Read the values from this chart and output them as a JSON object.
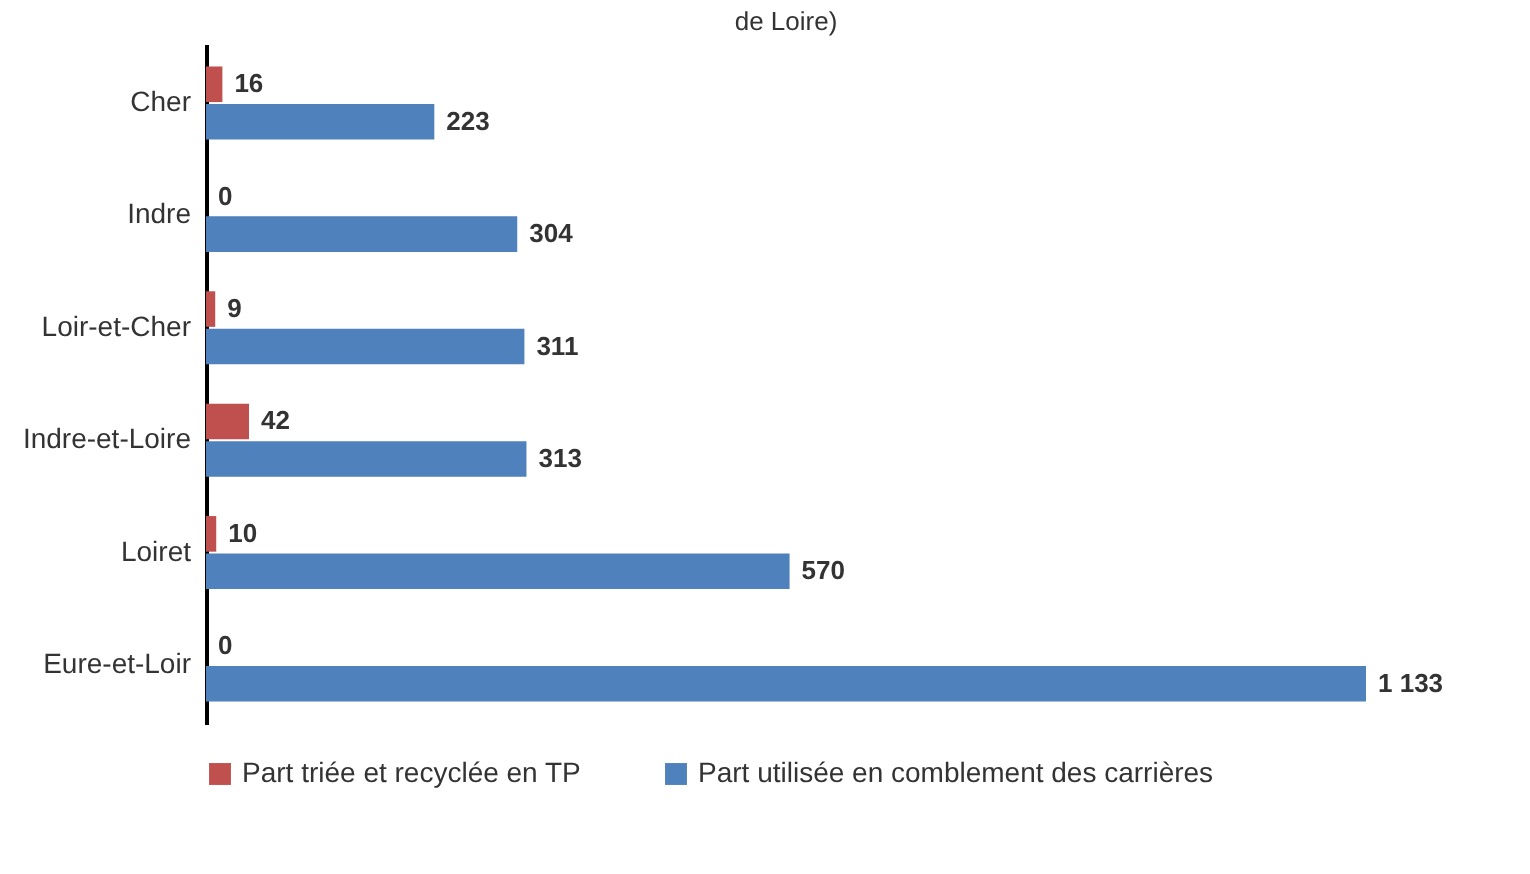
{
  "chart_data": {
    "type": "bar",
    "orientation": "horizontal",
    "title": "de Loire)",
    "categories": [
      "Cher",
      "Indre",
      "Loir-et-Cher",
      "Indre-et-Loire",
      "Loiret",
      "Eure-et-Loir"
    ],
    "legend": "bottom",
    "data_labels": true,
    "series": [
      {
        "name": "Part triée et recyclée en TP",
        "color": "#c0504d",
        "values": [
          16,
          0,
          9,
          42,
          10,
          0
        ],
        "value_labels": [
          "16",
          "0",
          "9",
          "42",
          "10",
          "0"
        ]
      },
      {
        "name": "Part  utilisée en comblement des carrières",
        "color": "#4f81bd",
        "values": [
          223,
          304,
          311,
          313,
          570,
          1133
        ],
        "value_labels": [
          "223",
          "304",
          "311",
          "313",
          "570",
          "1 133"
        ]
      }
    ]
  }
}
